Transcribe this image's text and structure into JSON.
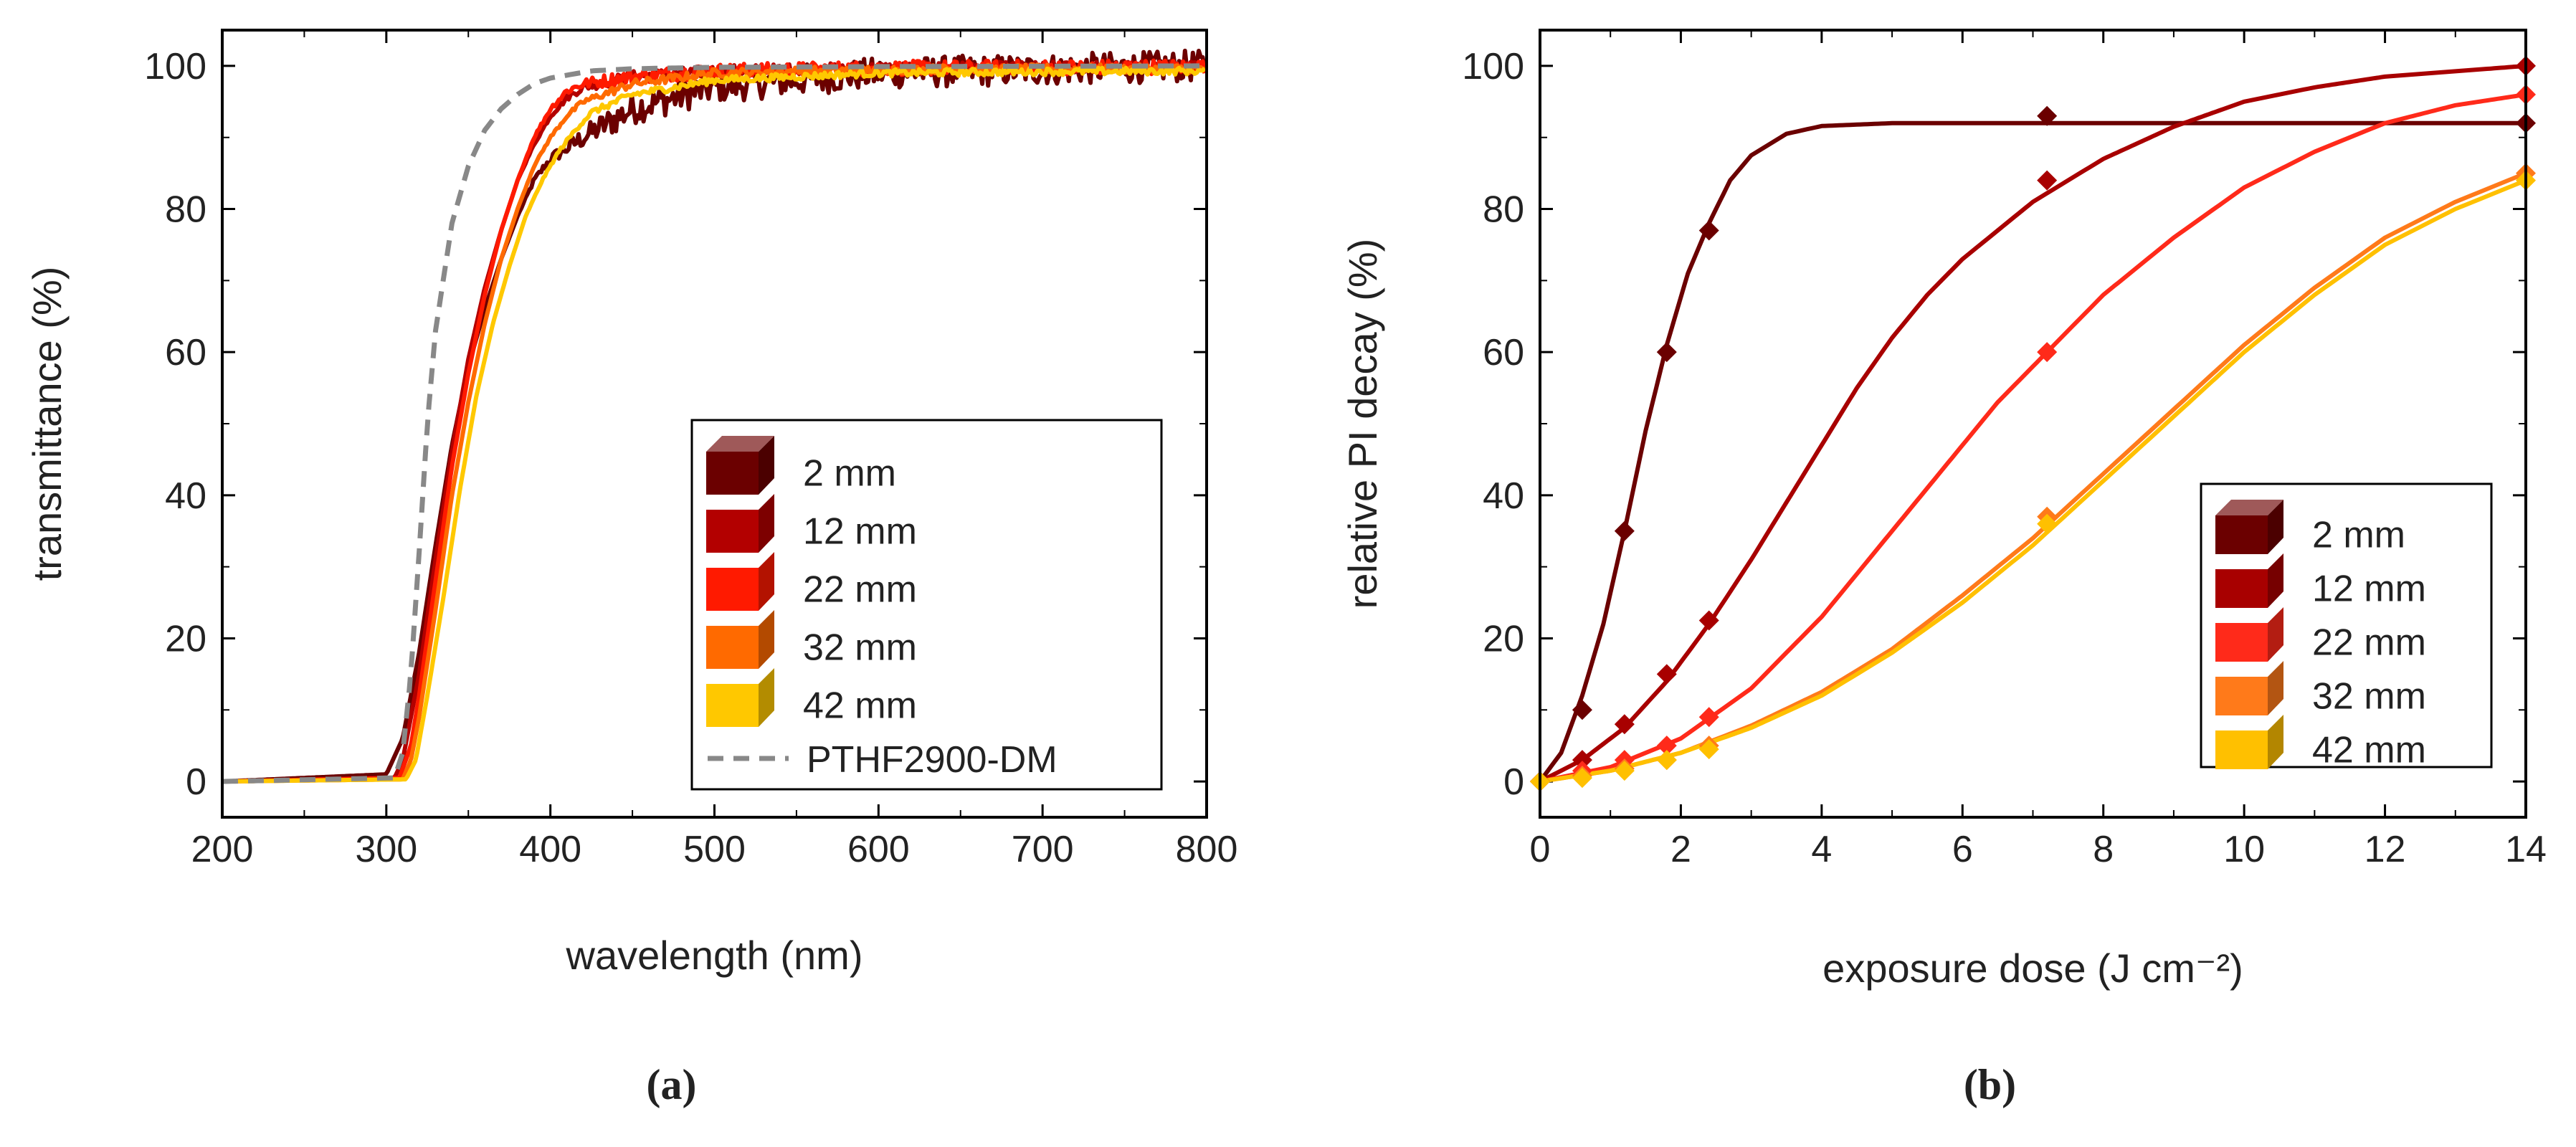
{
  "chart_data": [
    {
      "panel": "(a)",
      "type": "line",
      "xlabel": "wavelength (nm)",
      "ylabel": "transmittance (%)",
      "xlim": [
        200,
        800
      ],
      "ylim": [
        -5,
        105
      ],
      "xticks": [
        200,
        300,
        400,
        500,
        600,
        700,
        800
      ],
      "yticks": [
        0,
        20,
        40,
        60,
        80,
        100
      ],
      "legend_position": "bottom-right",
      "series": [
        {
          "name": "2 mm",
          "color": "#6b0000",
          "noise": 2.2,
          "x": [
            200,
            300,
            310,
            320,
            330,
            340,
            350,
            360,
            370,
            380,
            390,
            400,
            420,
            450,
            500,
            550,
            600,
            700,
            800
          ],
          "y": [
            0,
            1,
            6,
            18,
            33,
            47,
            58,
            66,
            73,
            79,
            84,
            87,
            90,
            94,
            97,
            98,
            99,
            99.5,
            100
          ]
        },
        {
          "name": "12 mm",
          "color": "#b30000",
          "noise": 0.8,
          "x": [
            200,
            305,
            310,
            320,
            330,
            340,
            350,
            360,
            370,
            380,
            390,
            400,
            410,
            420,
            450,
            500,
            600,
            700,
            800
          ],
          "y": [
            0,
            0.5,
            3,
            15,
            31,
            46,
            59,
            69,
            77,
            84,
            89,
            93,
            95.5,
            97,
            98.5,
            99.3,
            99.7,
            99.8,
            99.9
          ]
        },
        {
          "name": "22 mm",
          "color": "#ff1a00",
          "noise": 1.0,
          "x": [
            200,
            308,
            315,
            320,
            330,
            340,
            350,
            360,
            370,
            380,
            390,
            400,
            410,
            420,
            450,
            500,
            600,
            700,
            800
          ],
          "y": [
            0,
            0.5,
            5,
            12,
            28,
            44,
            57,
            68,
            77,
            84,
            90,
            94,
            96.5,
            97.5,
            98.5,
            99.3,
            99.7,
            99.8,
            99.9
          ]
        },
        {
          "name": "32 mm",
          "color": "#ff6a00",
          "noise": 0.6,
          "x": [
            200,
            310,
            315,
            320,
            330,
            340,
            350,
            360,
            370,
            380,
            390,
            400,
            410,
            420,
            450,
            500,
            600,
            700,
            800
          ],
          "y": [
            0,
            0.3,
            3,
            9,
            24,
            40,
            53,
            64,
            73,
            80,
            86,
            90,
            93,
            95,
            97.5,
            99,
            99.5,
            99.6,
            99.6
          ]
        },
        {
          "name": "42 mm",
          "color": "#ffc800",
          "noise": 0.5,
          "x": [
            200,
            312,
            318,
            325,
            335,
            345,
            355,
            365,
            375,
            385,
            395,
            405,
            415,
            425,
            450,
            500,
            600,
            700,
            800
          ],
          "y": [
            0,
            0.3,
            3,
            12,
            26,
            41,
            54,
            64,
            72,
            79,
            84,
            88,
            91,
            93.5,
            96,
            98,
            99,
            99.2,
            99.3
          ]
        },
        {
          "name": "PTHF2900-DM",
          "color": "#888888",
          "dashed": true,
          "x": [
            200,
            305,
            310,
            315,
            320,
            325,
            330,
            340,
            350,
            360,
            370,
            380,
            390,
            400,
            425,
            450,
            500,
            600,
            800
          ],
          "y": [
            0,
            0.5,
            4,
            15,
            32,
            50,
            63,
            78,
            86,
            91,
            94,
            96,
            97.5,
            98.3,
            99.3,
            99.6,
            99.8,
            99.9,
            100
          ]
        }
      ]
    },
    {
      "panel": "(b)",
      "type": "line",
      "xlabel": "exposure dose (J cm⁻²)",
      "ylabel": "relative PI decay (%)",
      "xlim": [
        0,
        14
      ],
      "ylim": [
        -5,
        105
      ],
      "xticks": [
        0,
        2,
        4,
        6,
        8,
        10,
        12,
        14
      ],
      "yticks": [
        0,
        20,
        40,
        60,
        80,
        100
      ],
      "legend_position": "bottom-right",
      "series": [
        {
          "name": "2 mm",
          "color": "#6b0000",
          "points_x": [
            0,
            0.6,
            1.2,
            1.8,
            2.4,
            7.2,
            14
          ],
          "points_y": [
            0,
            10,
            35,
            60,
            77,
            93,
            92
          ],
          "x": [
            0,
            0.3,
            0.6,
            0.9,
            1.2,
            1.5,
            1.8,
            2.1,
            2.4,
            2.7,
            3.0,
            3.5,
            4,
            5,
            7,
            10,
            14
          ],
          "y": [
            0,
            4,
            12,
            22,
            35,
            49,
            61,
            71,
            78,
            84,
            87.5,
            90.5,
            91.6,
            92,
            92,
            92,
            92
          ]
        },
        {
          "name": "12 mm",
          "color": "#a80000",
          "points_x": [
            0,
            0.6,
            1.2,
            1.8,
            2.4,
            7.2,
            14
          ],
          "points_y": [
            0,
            3,
            8,
            15,
            22.5,
            84,
            100
          ],
          "x": [
            0,
            0.6,
            1.2,
            1.8,
            2.4,
            3,
            3.5,
            4,
            4.5,
            5,
            5.5,
            6,
            7,
            8,
            9,
            10,
            11,
            12,
            14
          ],
          "y": [
            0,
            3,
            7.5,
            14,
            22,
            31,
            39,
            47,
            55,
            62,
            68,
            73,
            81,
            87,
            91.5,
            95,
            97,
            98.5,
            100
          ]
        },
        {
          "name": "22 mm",
          "color": "#ff2a1a",
          "points_x": [
            0,
            0.6,
            1.2,
            1.8,
            2.4,
            7.2,
            14
          ],
          "points_y": [
            0,
            1.5,
            3,
            5,
            9,
            60,
            96
          ],
          "x": [
            0,
            1,
            2,
            3,
            4,
            5,
            6,
            6.5,
            7,
            7.5,
            8,
            9,
            10,
            11,
            12,
            13,
            14
          ],
          "y": [
            0,
            2,
            6,
            13,
            23,
            35,
            47,
            53,
            58,
            63,
            68,
            76,
            83,
            88,
            92,
            94.5,
            96
          ]
        },
        {
          "name": "32 mm",
          "color": "#ff7a1a",
          "points_x": [
            0,
            0.6,
            1.2,
            1.8,
            2.4,
            7.2,
            14
          ],
          "points_y": [
            0,
            0.8,
            1.8,
            3,
            5,
            37,
            85
          ]
        },
        {
          "name": "42 mm",
          "color": "#ffc000",
          "points_x": [
            0,
            0.6,
            1.2,
            1.8,
            2.4,
            7.2,
            14
          ],
          "points_y": [
            0,
            0.5,
            1.5,
            3,
            4.5,
            36,
            84
          ],
          "x": [
            0,
            1,
            2,
            3,
            4,
            5,
            6,
            7,
            8,
            9,
            10,
            11,
            12,
            13,
            14
          ],
          "y": [
            0,
            1.5,
            4,
            7.5,
            12,
            18,
            25,
            33,
            42,
            51,
            60,
            68,
            75,
            80,
            84
          ]
        }
      ]
    }
  ],
  "panel_labels": [
    "(a)",
    "(b)"
  ],
  "legend_b_extra": {
    "curve_32mm_x": [
      0,
      1,
      2,
      3,
      4,
      5,
      6,
      7,
      8,
      9,
      10,
      11,
      12,
      13,
      14
    ],
    "curve_32mm_y": [
      0,
      1.5,
      4,
      7.8,
      12.5,
      18.5,
      26,
      34,
      43,
      52,
      61,
      69,
      76,
      81,
      85
    ]
  }
}
